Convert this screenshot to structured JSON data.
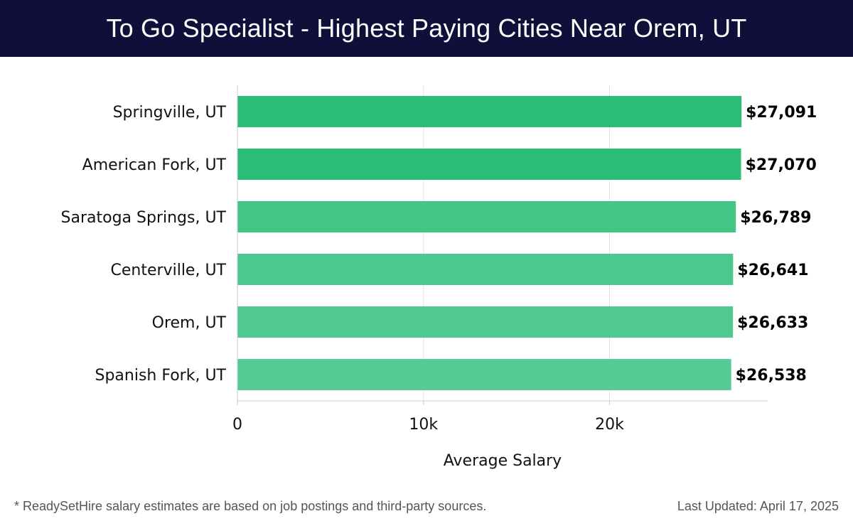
{
  "header": {
    "title": "To Go Specialist - Highest Paying Cities Near Orem, UT"
  },
  "footer": {
    "note": "* ReadySetHire salary estimates are based on job postings and third-party sources.",
    "last_updated": "Last Updated: April 17, 2025"
  },
  "chart_data": {
    "type": "bar",
    "orientation": "horizontal",
    "title": "To Go Specialist - Highest Paying Cities Near Orem, UT",
    "xlabel": "Average Salary",
    "ylabel": "",
    "categories": [
      "Springville, UT",
      "American Fork, UT",
      "Saratoga Springs, UT",
      "Centerville, UT",
      "Orem, UT",
      "Spanish Fork, UT"
    ],
    "values": [
      27091,
      27070,
      26789,
      26641,
      26633,
      26538
    ],
    "value_labels": [
      "$27,091",
      "$27,070",
      "$26,789",
      "$26,641",
      "$26,633",
      "$26,538"
    ],
    "xlim": [
      0,
      28500
    ],
    "xticks": [
      0,
      10000,
      20000
    ],
    "xtick_labels": [
      "0",
      "10k",
      "20k"
    ],
    "grid": "vertical",
    "bar_colors": [
      "#2bbd76",
      "#2bbd76",
      "#42c585",
      "#4cc88c",
      "#4fc98e",
      "#56cb93"
    ]
  }
}
